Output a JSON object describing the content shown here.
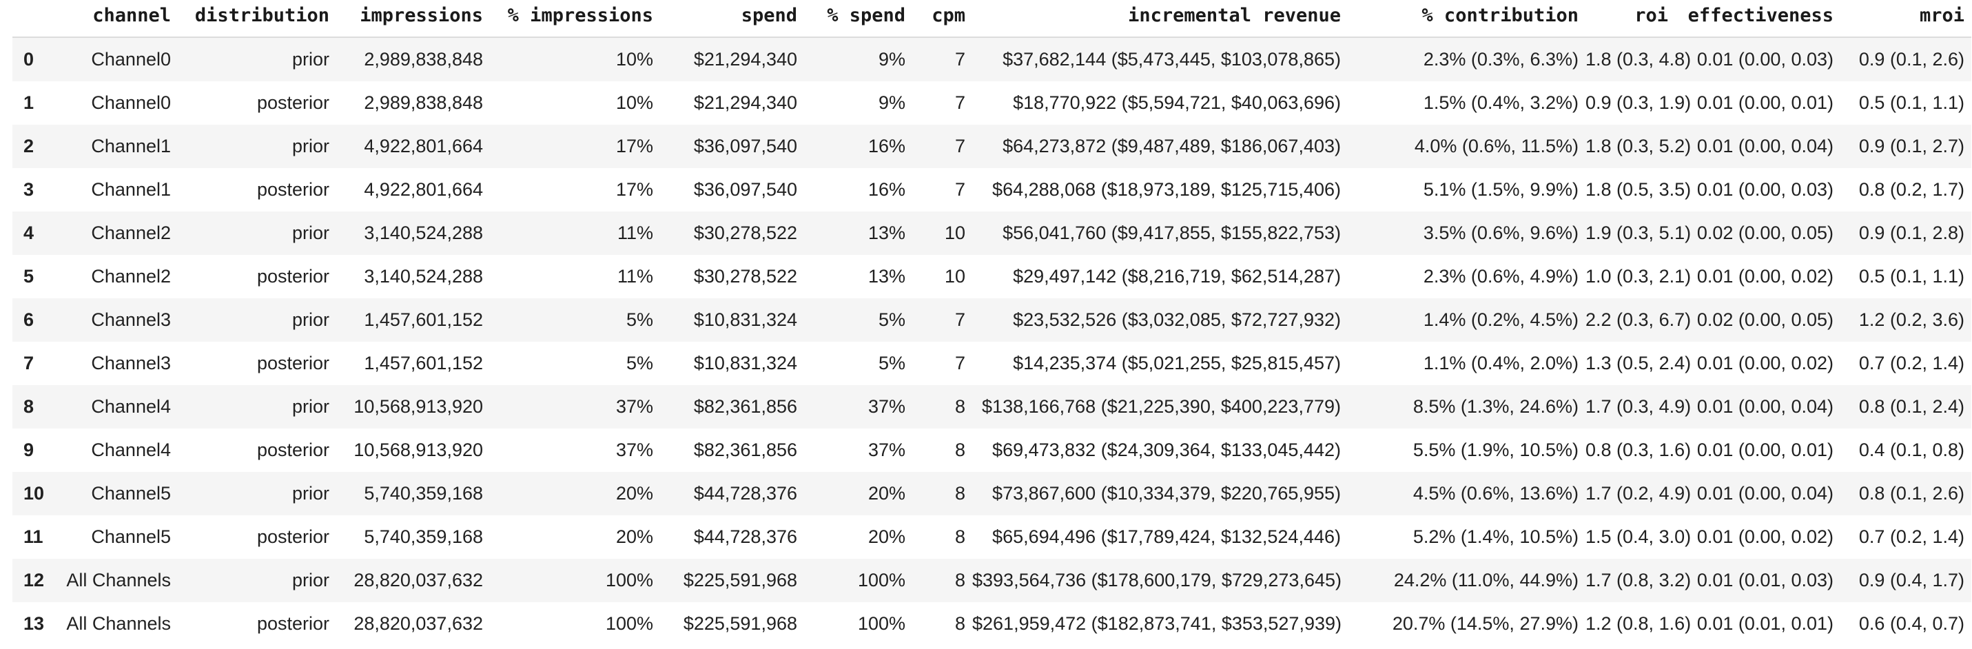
{
  "chart_data": {
    "type": "table",
    "title": "",
    "index_header": "",
    "columns": [
      "channel",
      "distribution",
      "impressions",
      "% impressions",
      "spend",
      "% spend",
      "cpm",
      "incremental revenue",
      "% contribution",
      "roi",
      "effectiveness",
      "mroi"
    ],
    "column_keys": [
      "channel",
      "distribution",
      "impressions",
      "pct-impressions",
      "spend",
      "pct-spend",
      "cpm",
      "incremental-revenue",
      "pct-contribution",
      "roi",
      "effectiveness",
      "mroi"
    ],
    "rows": [
      [
        "0",
        "Channel0",
        "prior",
        "2,989,838,848",
        "10%",
        "$21,294,340",
        "9%",
        "7",
        "$37,682,144 ($5,473,445, $103,078,865)",
        "2.3% (0.3%, 6.3%)",
        "1.8 (0.3, 4.8)",
        "0.01 (0.00, 0.03)",
        "0.9 (0.1, 2.6)"
      ],
      [
        "1",
        "Channel0",
        "posterior",
        "2,989,838,848",
        "10%",
        "$21,294,340",
        "9%",
        "7",
        "$18,770,922 ($5,594,721, $40,063,696)",
        "1.5% (0.4%, 3.2%)",
        "0.9 (0.3, 1.9)",
        "0.01 (0.00, 0.01)",
        "0.5 (0.1, 1.1)"
      ],
      [
        "2",
        "Channel1",
        "prior",
        "4,922,801,664",
        "17%",
        "$36,097,540",
        "16%",
        "7",
        "$64,273,872 ($9,487,489, $186,067,403)",
        "4.0% (0.6%, 11.5%)",
        "1.8 (0.3, 5.2)",
        "0.01 (0.00, 0.04)",
        "0.9 (0.1, 2.7)"
      ],
      [
        "3",
        "Channel1",
        "posterior",
        "4,922,801,664",
        "17%",
        "$36,097,540",
        "16%",
        "7",
        "$64,288,068 ($18,973,189, $125,715,406)",
        "5.1% (1.5%, 9.9%)",
        "1.8 (0.5, 3.5)",
        "0.01 (0.00, 0.03)",
        "0.8 (0.2, 1.7)"
      ],
      [
        "4",
        "Channel2",
        "prior",
        "3,140,524,288",
        "11%",
        "$30,278,522",
        "13%",
        "10",
        "$56,041,760 ($9,417,855, $155,822,753)",
        "3.5% (0.6%, 9.6%)",
        "1.9 (0.3, 5.1)",
        "0.02 (0.00, 0.05)",
        "0.9 (0.1, 2.8)"
      ],
      [
        "5",
        "Channel2",
        "posterior",
        "3,140,524,288",
        "11%",
        "$30,278,522",
        "13%",
        "10",
        "$29,497,142 ($8,216,719, $62,514,287)",
        "2.3% (0.6%, 4.9%)",
        "1.0 (0.3, 2.1)",
        "0.01 (0.00, 0.02)",
        "0.5 (0.1, 1.1)"
      ],
      [
        "6",
        "Channel3",
        "prior",
        "1,457,601,152",
        "5%",
        "$10,831,324",
        "5%",
        "7",
        "$23,532,526 ($3,032,085, $72,727,932)",
        "1.4% (0.2%, 4.5%)",
        "2.2 (0.3, 6.7)",
        "0.02 (0.00, 0.05)",
        "1.2 (0.2, 3.6)"
      ],
      [
        "7",
        "Channel3",
        "posterior",
        "1,457,601,152",
        "5%",
        "$10,831,324",
        "5%",
        "7",
        "$14,235,374 ($5,021,255, $25,815,457)",
        "1.1% (0.4%, 2.0%)",
        "1.3 (0.5, 2.4)",
        "0.01 (0.00, 0.02)",
        "0.7 (0.2, 1.4)"
      ],
      [
        "8",
        "Channel4",
        "prior",
        "10,568,913,920",
        "37%",
        "$82,361,856",
        "37%",
        "8",
        "$138,166,768 ($21,225,390, $400,223,779)",
        "8.5% (1.3%, 24.6%)",
        "1.7 (0.3, 4.9)",
        "0.01 (0.00, 0.04)",
        "0.8 (0.1, 2.4)"
      ],
      [
        "9",
        "Channel4",
        "posterior",
        "10,568,913,920",
        "37%",
        "$82,361,856",
        "37%",
        "8",
        "$69,473,832 ($24,309,364, $133,045,442)",
        "5.5% (1.9%, 10.5%)",
        "0.8 (0.3, 1.6)",
        "0.01 (0.00, 0.01)",
        "0.4 (0.1, 0.8)"
      ],
      [
        "10",
        "Channel5",
        "prior",
        "5,740,359,168",
        "20%",
        "$44,728,376",
        "20%",
        "8",
        "$73,867,600 ($10,334,379, $220,765,955)",
        "4.5% (0.6%, 13.6%)",
        "1.7 (0.2, 4.9)",
        "0.01 (0.00, 0.04)",
        "0.8 (0.1, 2.6)"
      ],
      [
        "11",
        "Channel5",
        "posterior",
        "5,740,359,168",
        "20%",
        "$44,728,376",
        "20%",
        "8",
        "$65,694,496 ($17,789,424, $132,524,446)",
        "5.2% (1.4%, 10.5%)",
        "1.5 (0.4, 3.0)",
        "0.01 (0.00, 0.02)",
        "0.7 (0.2, 1.4)"
      ],
      [
        "12",
        "All Channels",
        "prior",
        "28,820,037,632",
        "100%",
        "$225,591,968",
        "100%",
        "8",
        "$393,564,736 ($178,600,179, $729,273,645)",
        "24.2% (11.0%, 44.9%)",
        "1.7 (0.8, 3.2)",
        "0.01 (0.01, 0.03)",
        "0.9 (0.4, 1.7)"
      ],
      [
        "13",
        "All Channels",
        "posterior",
        "28,820,037,632",
        "100%",
        "$225,591,968",
        "100%",
        "8",
        "$261,959,472 ($182,873,741, $353,527,939)",
        "20.7% (14.5%, 27.9%)",
        "1.2 (0.8, 1.6)",
        "0.01 (0.01, 0.01)",
        "0.6 (0.4, 0.7)"
      ]
    ],
    "layout": {
      "stripe_color": "#f5f5f5",
      "header_border_color": "#dcdcdc",
      "text_color": "#212121",
      "grid": "row-stripes",
      "alignment": "right"
    }
  }
}
